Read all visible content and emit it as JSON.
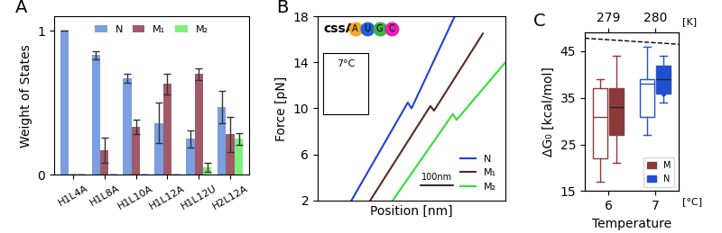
{
  "chart_data": [
    {
      "type": "bar",
      "title": "A",
      "categories": [
        "H1L4A",
        "H1L8A",
        "H1L10A",
        "H1L12A",
        "H1L12U",
        "H2L12A"
      ],
      "y_label": "Weight of States",
      "series": [
        {
          "name": "N",
          "color": "#7b9fe0",
          "values": [
            1.0,
            0.83,
            0.67,
            0.36,
            0.25,
            0.47
          ],
          "errors": [
            0,
            0.03,
            0.03,
            0.14,
            0.06,
            0.11
          ]
        },
        {
          "name": "M₁",
          "color": "#a05a6a",
          "values": [
            0,
            0.17,
            0.33,
            0.63,
            0.7,
            0.28
          ],
          "errors": [
            0,
            0.09,
            0.05,
            0.07,
            0.04,
            0.12
          ]
        },
        {
          "name": "M₂",
          "color": "#7ef07a",
          "values": [
            0,
            0,
            0,
            0,
            0.05,
            0.25
          ],
          "errors": [
            0,
            0,
            0,
            0,
            0.03,
            0.04
          ]
        }
      ],
      "ylim": [
        0,
        1.1
      ],
      "yticks": [
        0,
        1
      ],
      "legend": "upper center"
    },
    {
      "type": "line",
      "title": "B",
      "x_label": "Position [nm]",
      "y_label": "Force [pN]",
      "annotations": [
        "cssA",
        "A",
        "U",
        "G",
        "C",
        "7°C"
      ],
      "scale_bar_label": "100nm",
      "series": [
        {
          "name": "N",
          "color": "#2040e0",
          "x": [
            0.18,
            0.48,
            0.5,
            0.73
          ],
          "values": [
            2,
            10.5,
            10,
            18
          ]
        },
        {
          "name": "M₁",
          "color": "#5a2a20",
          "x": [
            0.28,
            0.6,
            0.62,
            0.88
          ],
          "values": [
            2,
            10.2,
            9.8,
            16.5
          ]
        },
        {
          "name": "M₂",
          "color": "#30e030",
          "x": [
            0.4,
            0.72,
            0.74,
            1.0
          ],
          "values": [
            2,
            9.5,
            9.0,
            14
          ]
        }
      ],
      "xlim": [
        0,
        1
      ],
      "ylim": [
        2,
        18
      ],
      "yticks": [
        2,
        6,
        10,
        14,
        18
      ],
      "tick_labels": "y",
      "legend": "lower right"
    },
    {
      "type": "box",
      "title": "C",
      "x_label": "Temperature",
      "y_label": "ΔG₀ [kcal/mol]",
      "x_unit_label": "[°C]",
      "x2_label": "[K]",
      "x": [
        6,
        7
      ],
      "xlim": [
        5.5,
        7.5
      ],
      "xticks": [
        6,
        7
      ],
      "x2ticks": [
        {
          "value": 6,
          "label": "279"
        },
        {
          "value": 7,
          "label": "280"
        }
      ],
      "ylim": [
        15,
        49
      ],
      "yticks": [
        15,
        25,
        35,
        45
      ],
      "series": [
        {
          "color": "#8b3a3a",
          "marker": "open",
          "values": [
            {
              "min": 17,
              "q1": 22,
              "median": 31,
              "q3": 37,
              "max": 39,
              "outliers": []
            },
            null
          ]
        },
        {
          "name": "M",
          "color": "#8b3a3a",
          "marker": "filled",
          "values": [
            {
              "min": 21,
              "q1": 27,
              "median": 33,
              "q3": 37,
              "max": 44,
              "outliers": []
            },
            null
          ]
        },
        {
          "color": "#2050d0",
          "marker": "open",
          "values": [
            null,
            {
              "min": 27,
              "q1": 31,
              "median": 38,
              "q3": 39,
              "max": 46,
              "outliers": []
            }
          ]
        },
        {
          "name": "N",
          "color": "#2050d0",
          "marker": "filled",
          "values": [
            null,
            {
              "min": 34,
              "q1": 36,
              "median": 39,
              "q3": 42,
              "max": 44,
              "outliers": [
                36
              ]
            }
          ]
        }
      ],
      "reference": {
        "x": [
          5.5,
          7.5
        ],
        "values": [
          47.8,
          46.5
        ],
        "line_style": "dashed"
      },
      "legend": "lower right"
    }
  ]
}
